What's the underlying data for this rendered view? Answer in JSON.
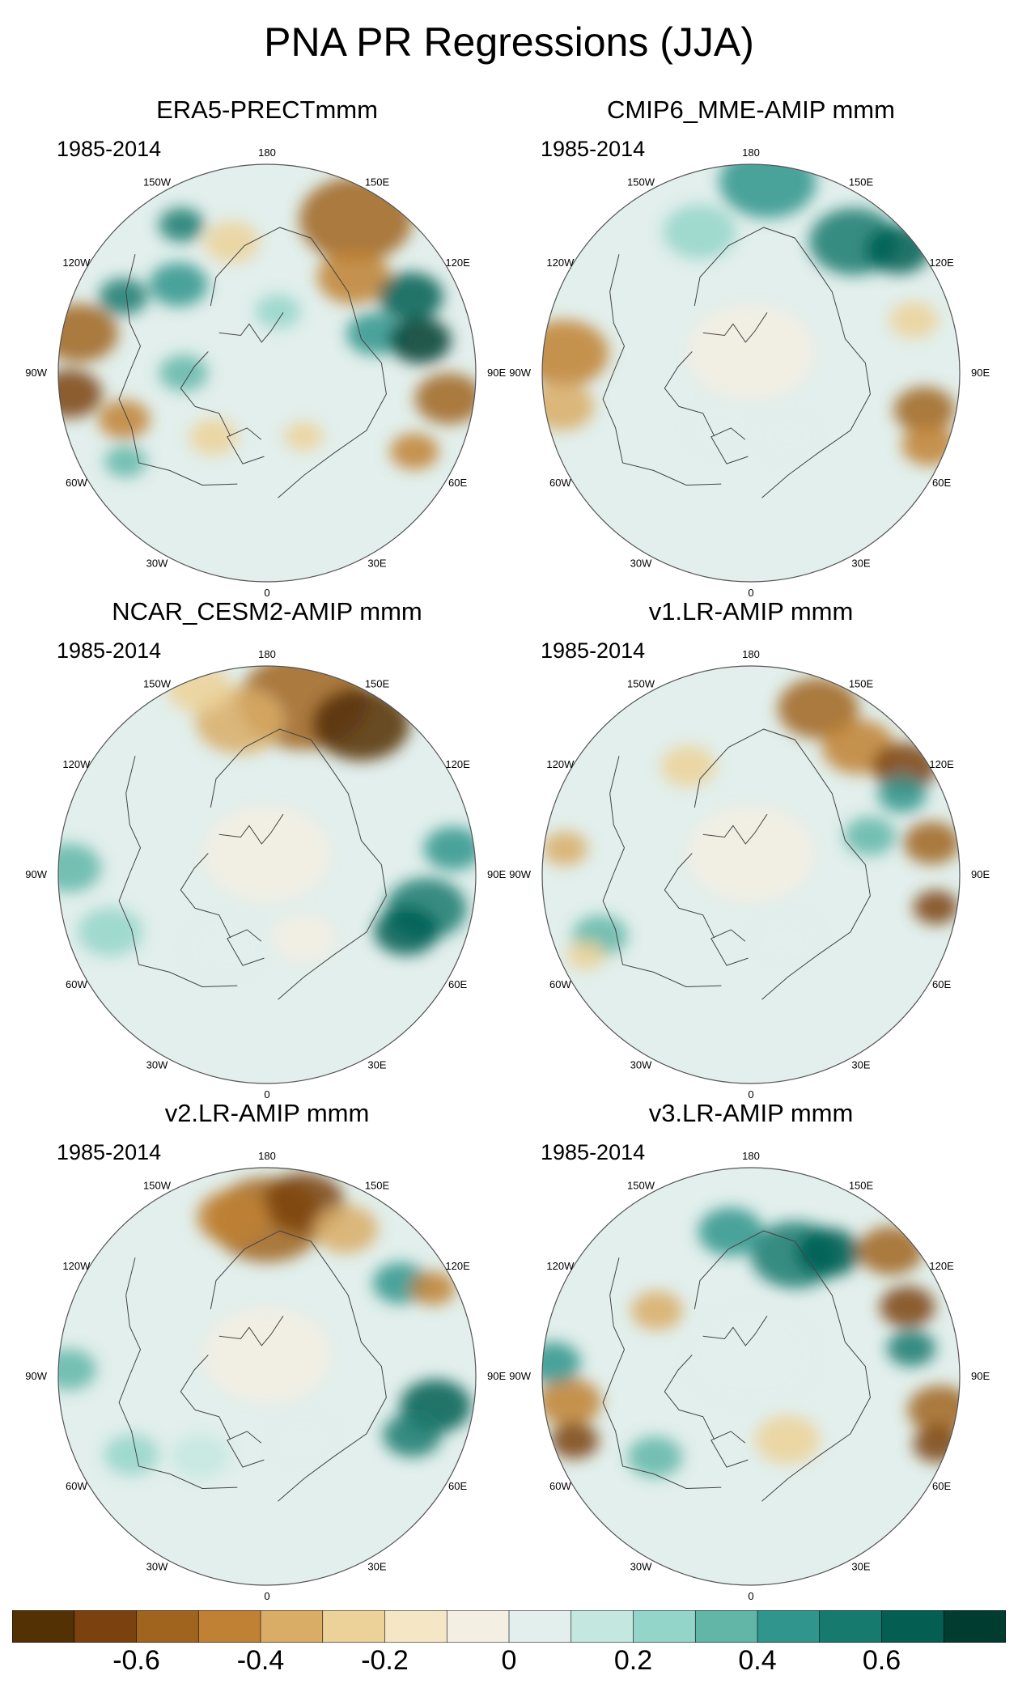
{
  "title": "PNA PR Regressions (JJA)",
  "period": "1985-2014",
  "lon_labels": [
    "180",
    "150E",
    "120E",
    "90E",
    "60E",
    "30E",
    "0",
    "30W",
    "60W",
    "90W",
    "120W",
    "150W"
  ],
  "colors": {
    "ocean_background": "#e2efec",
    "coastline": "#444444",
    "map_border": "#555555"
  },
  "chart_data": {
    "type": "heatmap",
    "projection": "north polar stereographic",
    "panels": [
      {
        "title": "ERA5-PRECTmmm",
        "period": "1985-2014"
      },
      {
        "title": "CMIP6_MME-AMIP  mmm",
        "period": "1985-2014"
      },
      {
        "title": "NCAR_CESM2-AMIP  mmm",
        "period": "1985-2014"
      },
      {
        "title": "v1.LR-AMIP  mmm",
        "period": "1985-2014"
      },
      {
        "title": "v2.LR-AMIP  mmm",
        "period": "1985-2014"
      },
      {
        "title": "v3.LR-AMIP  mmm",
        "period": "1985-2014"
      }
    ],
    "colorbar": {
      "levels": [
        -0.7,
        -0.6,
        -0.5,
        -0.4,
        -0.3,
        -0.2,
        -0.1,
        0,
        0.1,
        0.2,
        0.3,
        0.4,
        0.5,
        0.6,
        0.7
      ],
      "colors": [
        "#543005",
        "#7b4210",
        "#a0641f",
        "#c08134",
        "#d9ad66",
        "#ecd198",
        "#f5e6c6",
        "#f3efe3",
        "#e2efec",
        "#c4e7e0",
        "#94d5c9",
        "#62b6a8",
        "#30958c",
        "#167a6f",
        "#045e51",
        "#003c30"
      ],
      "tick_labels": [
        "-0.6",
        "-0.4",
        "-0.2",
        "0",
        "0.2",
        "0.4",
        "0.6"
      ],
      "tick_values": [
        -0.6,
        -0.4,
        -0.2,
        0,
        0.2,
        0.4,
        0.6
      ]
    }
  }
}
